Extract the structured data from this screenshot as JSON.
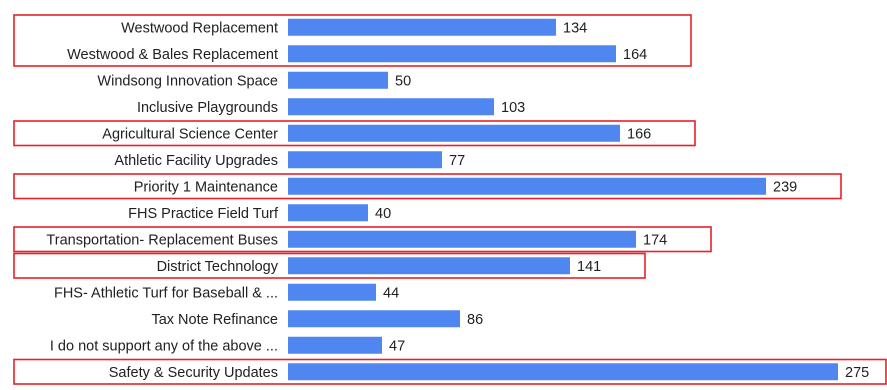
{
  "chart_data": {
    "type": "bar",
    "orientation": "horizontal",
    "title": "",
    "xlabel": "",
    "ylabel": "",
    "categories": [
      "Westwood Replacement",
      "Westwood & Bales Replacement",
      "Windsong Innovation Space",
      "Inclusive Playgrounds",
      "Agricultural Science Center",
      "Athletic Facility Upgrades",
      "Priority 1 Maintenance",
      "FHS Practice Field Turf",
      "Transportation- Replacement Buses",
      "District Technology",
      "FHS- Athletic Turf for Baseball & ...",
      "Tax Note Refinance",
      "I do not support any of the above ...",
      "Safety & Security Updates"
    ],
    "values": [
      134,
      164,
      50,
      103,
      166,
      77,
      239,
      40,
      174,
      141,
      44,
      86,
      47,
      275
    ],
    "xlim": [
      0,
      300
    ],
    "grid": false,
    "legend": "none",
    "bar_color": "#4f86f0",
    "highlight_color": "#e8202a",
    "highlight_groups": [
      [
        "Westwood Replacement",
        "Westwood & Bales Replacement"
      ],
      [
        "Agricultural Science Center"
      ],
      [
        "Priority 1 Maintenance"
      ],
      [
        "Transportation- Replacement Buses"
      ],
      [
        "District Technology"
      ],
      [
        "Safety & Security Updates"
      ]
    ]
  }
}
